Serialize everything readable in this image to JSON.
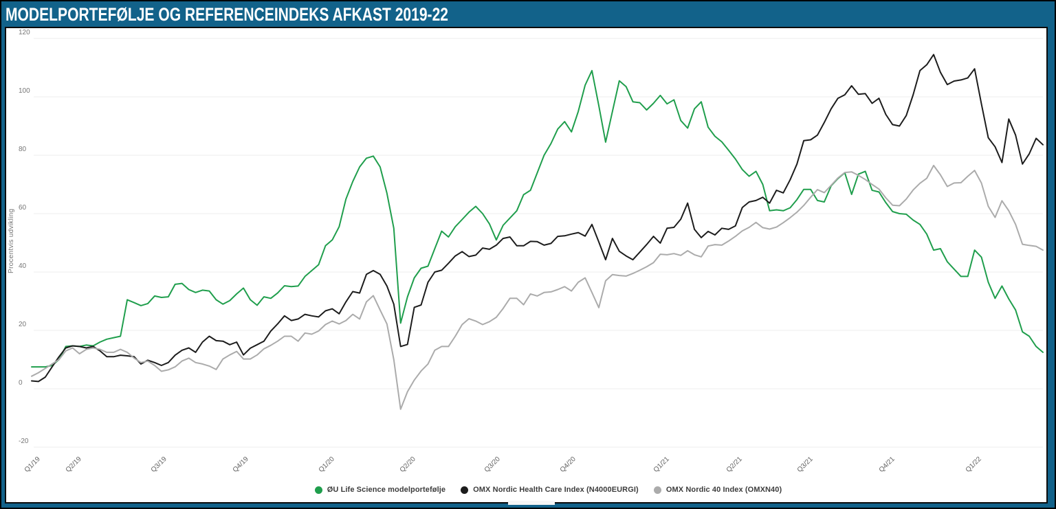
{
  "header": {
    "title": "MODELPORTEFØLJE OG REFERENCEINDEKS AFKAST 2019-22"
  },
  "chart_data": {
    "type": "line",
    "title": "MODELPORTEFØLJE OG REFERENCEINDEKS AFKAST 2019-22",
    "xlabel": "",
    "ylabel": "Procentvis udvikling",
    "ylim": [
      -20,
      120
    ],
    "grid": true,
    "legend_position": "bottom",
    "background": "#ffffff",
    "frame_color": "#12628a",
    "y_ticks": [
      120,
      100,
      80,
      60,
      40,
      20,
      0,
      -20
    ],
    "x_ticks": [
      {
        "label": "Q1/19",
        "pos": 0.006
      },
      {
        "label": "Q2/19",
        "pos": 0.047
      },
      {
        "label": "Q3/19",
        "pos": 0.131
      },
      {
        "label": "Q4/19",
        "pos": 0.212
      },
      {
        "label": "Q1/20",
        "pos": 0.297
      },
      {
        "label": "Q2/20",
        "pos": 0.377
      },
      {
        "label": "Q3/20",
        "pos": 0.461
      },
      {
        "label": "Q4/20",
        "pos": 0.536
      },
      {
        "label": "Q1/21",
        "pos": 0.628
      },
      {
        "label": "Q2/21",
        "pos": 0.7
      },
      {
        "label": "Q3/21",
        "pos": 0.77
      },
      {
        "label": "Q4/21",
        "pos": 0.851
      },
      {
        "label": "Q1/22",
        "pos": 0.937
      }
    ],
    "series": [
      {
        "key": "ou-life-science-portfolio",
        "name": "ØU Life Science modelportefølje",
        "color": "#1f9e4c",
        "values": [
          7.5,
          7.5,
          7.5,
          8,
          10,
          14.5,
          14.7,
          14.5,
          15,
          14.7,
          16,
          17,
          17.5,
          18,
          30.5,
          29.5,
          28.5,
          29.2,
          31.8,
          31.3,
          31.5,
          35.8,
          36.1,
          34,
          33,
          33.8,
          33.5,
          30.5,
          29,
          30.2,
          32.5,
          34.5,
          30.5,
          28.6,
          31.5,
          31,
          32.8,
          35.3,
          35,
          35.2,
          38.5,
          40.5,
          42.5,
          49,
          51,
          55.5,
          65,
          71,
          76,
          79,
          79.7,
          76,
          67,
          55,
          22.5,
          31.5,
          38,
          41.3,
          42,
          48,
          54,
          52,
          55.5,
          58,
          60.5,
          62.5,
          60,
          56.5,
          51,
          56,
          58.5,
          61,
          66.5,
          68,
          74,
          80,
          84,
          89,
          91.5,
          88,
          95,
          104,
          109,
          97,
          84.5,
          95,
          105.5,
          103.5,
          98.3,
          98,
          95.5,
          97.8,
          100.5,
          97.6,
          99,
          91.9,
          89.3,
          95.9,
          98.3,
          89.6,
          86.5,
          84.6,
          81.7,
          78.7,
          75.1,
          72.8,
          74.5,
          70,
          61,
          61.3,
          61,
          62,
          64.8,
          68.3,
          68.3,
          64.5,
          64,
          69.5,
          72,
          74,
          66.6,
          73.5,
          74.5,
          68,
          67.4,
          63.8,
          60.7,
          60,
          59.8,
          57.8,
          56.3,
          53,
          47.5,
          48,
          43.5,
          41,
          38.5,
          38.5,
          47.5,
          45.1,
          36.5,
          31,
          35.2,
          30.8,
          27,
          19.5,
          18,
          14.5,
          12.5
        ]
      },
      {
        "key": "omx-health-care-index",
        "name": "OMX Nordic Health Care Index (N4000EURGI)",
        "color": "#1c1c1c",
        "values": [
          2.7,
          2.5,
          4,
          7.5,
          11,
          14,
          14.7,
          14.5,
          14,
          14.5,
          13,
          11,
          11,
          11.5,
          11.3,
          11,
          8.5,
          9.8,
          9,
          8,
          9,
          11.5,
          13.2,
          14,
          12.5,
          16,
          18,
          16.5,
          16.3,
          15.1,
          16,
          11.6,
          13.9,
          15.1,
          16.3,
          19.8,
          22.2,
          25,
          23.4,
          23.9,
          25.5,
          25,
          24.6,
          26.7,
          27.4,
          25.7,
          29.8,
          33.3,
          32.8,
          39.2,
          40.5,
          39.2,
          35.2,
          29,
          14.5,
          15.2,
          27.9,
          28.7,
          36.5,
          40,
          40.6,
          43,
          45.5,
          47,
          45.3,
          45.8,
          48.2,
          47.8,
          49.2,
          51.5,
          52,
          49,
          49,
          50.5,
          50.4,
          49.2,
          49.8,
          52.2,
          52.4,
          53,
          53.5,
          52.3,
          56.3,
          50.3,
          44.2,
          51.5,
          47.1,
          45.5,
          44.2,
          46.8,
          49.4,
          52.2,
          49.9,
          55,
          55.3,
          58.1,
          63.6,
          54.6,
          51.8,
          53.9,
          52.7,
          55,
          54.6,
          55.8,
          62.1,
          64,
          64.5,
          65.6,
          63.6,
          68,
          67.1,
          71.6,
          77,
          85,
          85.3,
          86.9,
          91.2,
          95.9,
          99.5,
          100.7,
          103.8,
          100.9,
          101.1,
          97.8,
          99.5,
          94,
          90.5,
          90,
          93.6,
          100.7,
          109,
          111,
          114.5,
          108.4,
          104.2,
          105.4,
          105.8,
          106.5,
          109.6,
          97.6,
          86,
          82.9,
          77.5,
          92.4,
          86.9,
          77,
          80.5,
          85.8,
          83.6
        ]
      },
      {
        "key": "omx-nordic40-index",
        "name": "OMX Nordic 40 Index (OMXN40)",
        "color": "#ababab",
        "values": [
          4.3,
          5.5,
          7,
          8.5,
          10,
          13,
          14,
          12,
          13.5,
          14,
          13.5,
          12.5,
          12.5,
          13.5,
          12.5,
          10.5,
          9,
          9.5,
          8,
          6,
          6.5,
          7.5,
          9.5,
          10.5,
          9,
          8.5,
          7.8,
          6.6,
          10.2,
          11.6,
          12.8,
          10.2,
          10.2,
          11.6,
          13.7,
          14.9,
          16.3,
          18,
          18,
          16.3,
          19.1,
          18.7,
          19.8,
          22,
          23.2,
          22.2,
          23.4,
          25.5,
          23.9,
          29.8,
          31.9,
          27,
          22.2,
          10,
          -7,
          -1,
          3,
          6.1,
          8.5,
          13.2,
          14.5,
          14.5,
          18,
          22,
          24,
          23.2,
          22,
          23,
          24.5,
          27.5,
          31,
          31,
          28.8,
          32.5,
          31.8,
          33,
          33.2,
          34,
          35,
          33.5,
          36.5,
          38,
          33,
          27.8,
          37,
          39.1,
          38.8,
          38.6,
          39.5,
          40.6,
          41.8,
          43.2,
          46.1,
          45.9,
          46.3,
          45.7,
          47.3,
          45.9,
          45.2,
          48.9,
          49.4,
          49.2,
          50.6,
          52.2,
          54.1,
          55.3,
          57,
          55.2,
          54.7,
          55.4,
          56.9,
          58.6,
          60.5,
          62.8,
          65.6,
          68.2,
          67.2,
          69.7,
          72.2,
          74.1,
          74.3,
          73.1,
          71.7,
          70,
          68.4,
          65.4,
          62.9,
          62.7,
          65,
          68.1,
          70.4,
          72.1,
          76.5,
          73.3,
          69.3,
          70.5,
          70.6,
          72.8,
          74.8,
          70.5,
          62.5,
          58.7,
          64.4,
          61,
          56.3,
          49.5,
          49.1,
          48.8,
          47.5
        ]
      }
    ]
  }
}
